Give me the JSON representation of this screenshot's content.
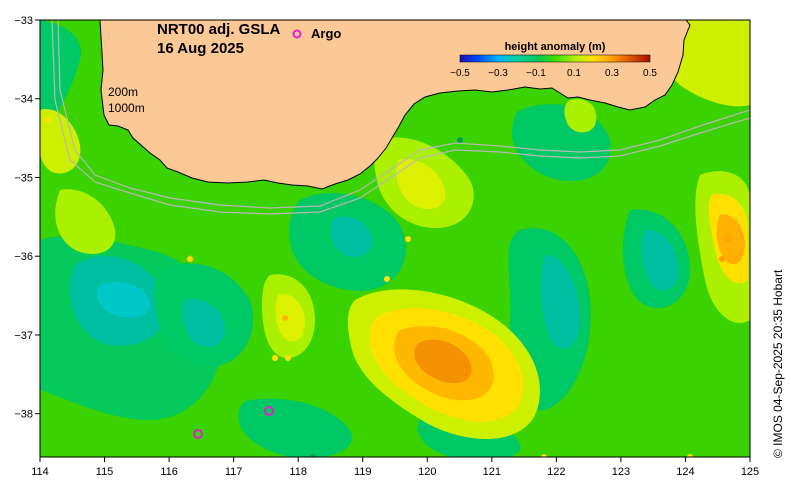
{
  "map": {
    "title_line1": "NRT00 adj. GSLA",
    "title_line2": "16 Aug 2025",
    "legend_argo": "Argo",
    "isobath_labels": [
      "200m",
      "1000m"
    ],
    "credit": "© IMOS 04-Sep-2025 20:35 Hobart",
    "x_ticks": [
      "114",
      "115",
      "116",
      "117",
      "118",
      "119",
      "120",
      "121",
      "122",
      "123",
      "124",
      "125"
    ],
    "y_ticks": [
      "−33",
      "−34",
      "−35",
      "−36",
      "−37",
      "−38"
    ],
    "lon_range": [
      114,
      125
    ],
    "lat_range": [
      -38.55,
      -33.0
    ]
  },
  "colorbar": {
    "title": "height anomaly (m)",
    "ticks": [
      "−0.5",
      "−0.3",
      "−0.1",
      "0.1",
      "0.3",
      "0.5"
    ],
    "colors": [
      "#1e0ab4",
      "#0050ff",
      "#00b4ff",
      "#00d2a0",
      "#00c864",
      "#3cdc00",
      "#aaf000",
      "#ffe000",
      "#ffa000",
      "#e05000",
      "#a01000"
    ]
  },
  "colors": {
    "land": "#fbc896",
    "background": "#3ad200",
    "argo": "#e020c8",
    "isobath": "#b8b8b8"
  },
  "features": [
    {
      "name": "eddy-center-positive",
      "lon": 120.2,
      "lat": -37.2,
      "level": 0.3
    },
    {
      "name": "eddy-west-negative",
      "lon": 115.3,
      "lat": -36.5,
      "level": -0.15
    },
    {
      "name": "eddy-east-positive",
      "lon": 124.7,
      "lat": -35.8,
      "level": 0.3
    },
    {
      "name": "eddy-south-negative",
      "lon": 122.2,
      "lat": -36.8,
      "level": -0.1
    }
  ],
  "argo_floats": [
    {
      "lon": 116.47,
      "lat": -38.2
    },
    {
      "lon": 117.55,
      "lat": -37.93
    }
  ]
}
